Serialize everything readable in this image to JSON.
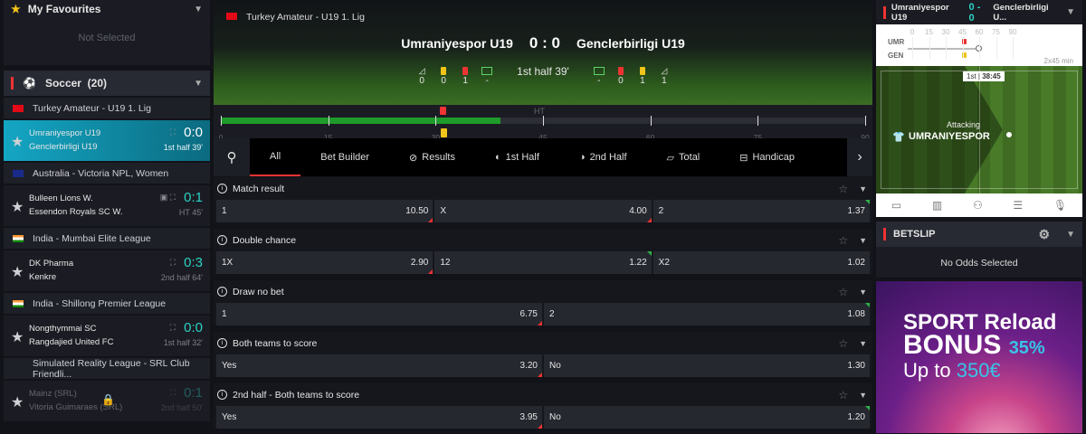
{
  "sidebar": {
    "favourites": {
      "title": "My Favourites",
      "empty": "Not Selected"
    },
    "sport": {
      "title": "Soccer",
      "count": "(20)"
    },
    "groups": [
      {
        "league": "Turkey Amateur - U19 1. Lig",
        "flag": "turkey",
        "match": {
          "home": "Umraniyespor U19",
          "away": "Genclerbirligi U19",
          "score": "0:0",
          "time": "1st half  39'",
          "selected": true
        }
      },
      {
        "league": "Australia - Victoria NPL, Women",
        "flag": "australia",
        "match": {
          "home": "Bulleen Lions W.",
          "away": "Essendon Royals SC W.",
          "score": "0:1",
          "time": "HT  45'",
          "video": true
        }
      },
      {
        "league": "India - Mumbai Elite League",
        "flag": "india",
        "match": {
          "home": "DK Pharma",
          "away": "Kenkre",
          "score": "0:3",
          "time": "2nd half  64'"
        }
      },
      {
        "league": "India - Shillong Premier League",
        "flag": "india",
        "match": {
          "home": "Nongthymmai SC",
          "away": "Rangdajied United FC",
          "score": "0:0",
          "time": "1st half  32'"
        }
      },
      {
        "league": "Simulated Reality League - SRL Club Friendli...",
        "flag": "",
        "match": {
          "home": "Mainz (SRL)",
          "away": "Vitoria Guimaraes (SRL)",
          "score": "0:1",
          "time": "2nd half  50'",
          "locked": true
        }
      }
    ]
  },
  "event": {
    "league": "Turkey Amateur - U19 1. Lig",
    "home": "Umraniyespor U19",
    "away": "Genclerbirligi U19",
    "score": "0 : 0",
    "period": "1st half",
    "minute": "39'",
    "home_stats": [
      "0",
      "0",
      "1",
      "-"
    ],
    "away_stats": [
      "-",
      "0",
      "1",
      "1"
    ],
    "timeline": {
      "progress_minute": 39,
      "ht_label": "HT",
      "ticks": [
        "0",
        "15",
        "30",
        "45",
        "60",
        "75",
        "90"
      ]
    }
  },
  "tabs": [
    "All",
    "Bet Builder",
    "Results",
    "1st Half",
    "2nd Half",
    "Total",
    "Handicap"
  ],
  "markets": [
    {
      "title": "Match result",
      "odds": [
        {
          "l": "1",
          "v": "10.50",
          "t": "dn"
        },
        {
          "l": "X",
          "v": "4.00",
          "t": "dn"
        },
        {
          "l": "2",
          "v": "1.37",
          "t": "up"
        }
      ]
    },
    {
      "title": "Double chance",
      "odds": [
        {
          "l": "1X",
          "v": "2.90",
          "t": "dn"
        },
        {
          "l": "12",
          "v": "1.22",
          "t": "up"
        },
        {
          "l": "X2",
          "v": "1.02",
          "t": ""
        }
      ]
    },
    {
      "title": "Draw no bet",
      "odds": [
        {
          "l": "1",
          "v": "6.75",
          "t": "dn"
        },
        {
          "l": "2",
          "v": "1.08",
          "t": "up"
        }
      ]
    },
    {
      "title": "Both teams to score",
      "odds": [
        {
          "l": "Yes",
          "v": "3.20",
          "t": "dn"
        },
        {
          "l": "No",
          "v": "1.30",
          "t": ""
        }
      ]
    },
    {
      "title": "2nd half - Both teams to score",
      "odds": [
        {
          "l": "Yes",
          "v": "3.95",
          "t": "dn"
        },
        {
          "l": "No",
          "v": "1.20",
          "t": "up"
        }
      ]
    }
  ],
  "tracker": {
    "home": "Umraniyespor U19",
    "score": "0 - 0",
    "away": "Genclerbirligi U...",
    "home_abbr": "UMR",
    "away_abbr": "GEN",
    "ticks": [
      "0",
      "15",
      "30",
      "45",
      "60",
      "75",
      "90"
    ],
    "format": "2x45 min",
    "period": "1st",
    "clock": "38:45",
    "state": "Attacking",
    "team": "UMRANIYESPOR"
  },
  "betslip": {
    "title": "BETSLIP",
    "empty": "No Odds Selected"
  },
  "banner": {
    "line1": "SPORT Reload",
    "line2": "BONUS",
    "pct": "35%",
    "line3": "Up to",
    "amount": "350€"
  },
  "colors": {
    "accent": "#e33333",
    "score": "#2bd1c4",
    "selected": "#14a6c4",
    "odds_up": "#2eb34b"
  }
}
